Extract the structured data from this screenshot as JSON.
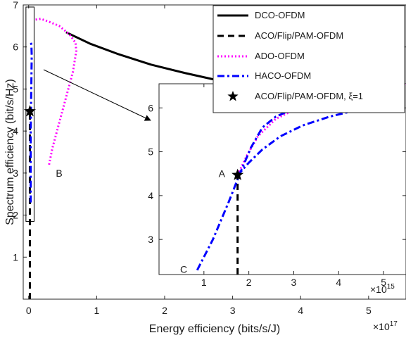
{
  "colors": {
    "dco": "#000000",
    "aco": "#000000",
    "ado": "#ff00ff",
    "haco": "#0000ff",
    "axis": "#262626"
  },
  "chart_data": [
    {
      "type": "line",
      "title": "",
      "xlabel": "Energy efficiency (bits/s/J)",
      "ylabel": "Spectrum efficiency (bit/s/Hz)",
      "x_exponent_label": "×10",
      "x_exponent": "17",
      "xlim": [
        -0.08,
        5.55
      ],
      "ylim": [
        0,
        7
      ],
      "x_ticks": [
        0,
        1,
        2,
        3,
        4,
        5
      ],
      "y_ticks": [
        1,
        2,
        3,
        4,
        5,
        6,
        7
      ],
      "legend_position": "top-right",
      "series": [
        {
          "name": "DCO-OFDM",
          "style": "solid",
          "x": [
            0.55,
            0.9,
            1.3,
            1.8,
            2.3,
            2.8,
            3.3,
            3.8,
            4.3,
            4.8,
            5.3,
            5.55
          ],
          "y": [
            6.35,
            6.08,
            5.84,
            5.58,
            5.38,
            5.2,
            5.04,
            4.9,
            4.76,
            4.62,
            4.48,
            4.42
          ]
        },
        {
          "name": "ACO/Flip/PAM-OFDM",
          "style": "dashed",
          "x": [
            0.018,
            0.018,
            0.018,
            0.018
          ],
          "y": [
            0,
            2.0,
            3.6,
            4.47
          ]
        },
        {
          "name": "ADO-OFDM",
          "style": "dotted",
          "x": [
            0.3,
            0.35,
            0.45,
            0.55,
            0.65,
            0.7,
            0.69,
            0.6,
            0.45,
            0.3,
            0.18,
            0.1
          ],
          "y": [
            3.2,
            3.6,
            4.2,
            4.8,
            5.4,
            5.9,
            6.1,
            6.3,
            6.5,
            6.6,
            6.67,
            6.65
          ]
        },
        {
          "name": "HACO-OFDM",
          "style": "dashdot",
          "x": [
            0.03,
            0.03,
            0.03,
            0.035,
            0.04,
            0.045,
            0.04,
            0.035
          ],
          "y": [
            2.3,
            3.2,
            4.0,
            4.6,
            5.2,
            5.8,
            6.05,
            6.1
          ]
        },
        {
          "name": "ACO/Flip/PAM-OFDM, ξ=1",
          "style": "marker-star",
          "x": [
            0.018
          ],
          "y": [
            4.47
          ]
        }
      ],
      "annotations": [
        {
          "text": "B",
          "x": 0.4,
          "y": 3.0
        }
      ],
      "zoom_box": {
        "x": [
          -0.04,
          0.08
        ],
        "y": [
          1.85,
          6.95
        ]
      }
    },
    {
      "type": "line",
      "title": "",
      "xlabel": "",
      "ylabel": "",
      "x_exponent_label": "×10",
      "x_exponent": "15",
      "xlim": [
        0,
        5.5
      ],
      "ylim": [
        2.2,
        6.55
      ],
      "x_ticks": [
        1,
        2,
        3,
        4,
        5
      ],
      "y_ticks": [
        3,
        4,
        5,
        6
      ],
      "series": [
        {
          "name": "ADO-OFDM",
          "style": "dotted",
          "x": [
            1.75,
            1.95,
            2.2,
            2.6,
            3.1,
            3.7,
            4.3,
            4.9,
            5.5
          ],
          "y": [
            4.47,
            4.9,
            5.35,
            5.75,
            6.0,
            6.2,
            6.35,
            6.47,
            6.55
          ]
        },
        {
          "name": "HACO-OFDM",
          "style": "dashdot",
          "x": [
            0.85,
            1.2,
            1.55,
            1.8,
            2.05,
            2.3,
            2.6,
            3.0,
            3.5,
            4.0,
            4.5,
            4.65,
            4.4,
            3.8,
            3.2,
            2.7,
            2.3,
            2.0,
            1.8,
            1.75
          ],
          "y": [
            2.3,
            3.0,
            3.85,
            4.5,
            5.1,
            5.55,
            5.8,
            5.98,
            6.08,
            6.12,
            6.12,
            6.05,
            5.95,
            5.8,
            5.6,
            5.35,
            5.05,
            4.75,
            4.52,
            4.47
          ]
        },
        {
          "name": "ACO/Flip/PAM-OFDM",
          "style": "dashed",
          "x": [
            1.75,
            1.75
          ],
          "y": [
            2.2,
            4.47
          ]
        },
        {
          "name": "ACO/Flip/PAM-OFDM, ξ=1",
          "style": "marker-star",
          "x": [
            1.75
          ],
          "y": [
            4.47
          ]
        }
      ],
      "annotations": [
        {
          "text": "A",
          "x": 1.4,
          "y": 4.5
        },
        {
          "text": "C",
          "x": 0.55,
          "y": 2.32
        }
      ]
    }
  ]
}
